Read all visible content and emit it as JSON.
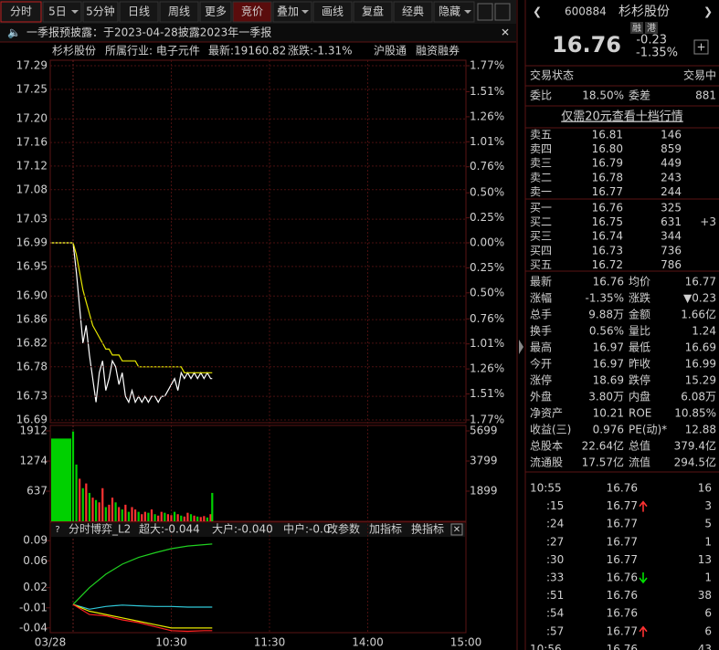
{
  "toolbar": {
    "tabs": [
      "分时",
      "5日",
      "5分钟",
      "日线",
      "周线",
      "更多",
      "竞价",
      "叠加",
      "画线",
      "复盘",
      "经典",
      "隐藏"
    ]
  },
  "notice": "一季报预披露：于2023-04-28披露2023年一季报",
  "info": {
    "name": "杉杉股份",
    "industry": "所属行业: 电子元件",
    "latest": "最新:19160.82",
    "change": "涨跌:-1.31%",
    "buttons": [
      "沪股通",
      "融资融券"
    ]
  },
  "chart_data": [
    {
      "type": "line",
      "x": [
        "09:15",
        "09:30",
        "09:32",
        "09:34",
        "09:36",
        "09:38",
        "09:40",
        "09:42",
        "09:44",
        "09:46",
        "09:48",
        "09:50",
        "09:52",
        "09:54",
        "09:56",
        "09:58",
        "10:00",
        "10:02",
        "10:04",
        "10:06",
        "10:08",
        "10:10",
        "10:12",
        "10:14",
        "10:16",
        "10:18",
        "10:20",
        "10:22",
        "10:24",
        "10:26",
        "10:28",
        "10:30",
        "10:32",
        "10:34",
        "10:36",
        "10:38",
        "10:40",
        "10:42",
        "10:44",
        "10:46",
        "10:48",
        "10:50",
        "10:52",
        "10:54",
        "10:55"
      ],
      "series": [
        {
          "color": "#ffffff",
          "values": [
            16.99,
            16.99,
            16.94,
            16.88,
            16.82,
            16.85,
            16.8,
            16.76,
            16.72,
            16.77,
            16.79,
            16.74,
            16.76,
            16.79,
            16.78,
            16.75,
            16.77,
            16.73,
            16.72,
            16.74,
            16.72,
            16.73,
            16.72,
            16.73,
            16.72,
            16.73,
            16.73,
            16.72,
            16.73,
            16.73,
            16.74,
            16.75,
            16.76,
            16.74,
            16.77,
            16.76,
            16.77,
            16.76,
            16.77,
            16.76,
            16.77,
            16.76,
            16.77,
            16.76,
            16.76
          ]
        },
        {
          "color": "#e8e800",
          "values": [
            16.99,
            16.99,
            16.97,
            16.94,
            16.91,
            16.89,
            16.87,
            16.85,
            16.84,
            16.83,
            16.82,
            16.81,
            16.81,
            16.8,
            16.8,
            16.8,
            16.79,
            16.79,
            16.79,
            16.79,
            16.79,
            16.78,
            16.78,
            16.78,
            16.78,
            16.78,
            16.78,
            16.78,
            16.78,
            16.78,
            16.78,
            16.78,
            16.78,
            16.78,
            16.78,
            16.77,
            16.77,
            16.77,
            16.77,
            16.77,
            16.77,
            16.77,
            16.77,
            16.77,
            16.77
          ]
        }
      ],
      "ylim": [
        16.69,
        17.29
      ],
      "yticks": [
        16.69,
        16.73,
        16.78,
        16.82,
        16.86,
        {
          "value": 16.9,
          "label": "16.90"
        },
        16.95,
        16.99,
        17.03,
        17.08,
        17.12,
        17.16,
        {
          "value": 17.2,
          "label": "17.20"
        },
        17.25,
        17.29
      ],
      "y2lim": [
        -1.77,
        1.77
      ],
      "y2ticks": [
        {
          "value": -1.77,
          "label": "1.77%"
        },
        {
          "value": -1.51,
          "label": "1.51%"
        },
        {
          "value": -1.26,
          "label": "1.26%"
        },
        {
          "value": -1.01,
          "label": "1.01%"
        },
        {
          "value": -0.76,
          "label": "0.76%"
        },
        {
          "value": -0.5,
          "label": "0.50%"
        },
        {
          "value": -0.25,
          "label": "0.25%"
        },
        {
          "value": 0,
          "label": "0.00%"
        },
        {
          "value": 0.25,
          "label": "0.25%"
        },
        {
          "value": 0.5,
          "label": "0.50%"
        },
        {
          "value": 0.76,
          "label": "0.76%"
        },
        {
          "value": 1.01,
          "label": "1.01%"
        },
        {
          "value": 1.26,
          "label": "1.26%"
        },
        {
          "value": 1.51,
          "label": "1.51%"
        },
        {
          "value": 1.77,
          "label": "1.77%"
        }
      ],
      "xticks": [
        {
          "value": "09:15",
          "label": "03/28"
        },
        "10:30",
        "11:30",
        "14:00",
        "15:00"
      ],
      "grid": true
    },
    {
      "type": "bar",
      "x": [
        "09:15",
        "09:30",
        "09:32",
        "09:34",
        "09:36",
        "09:38",
        "09:40",
        "09:42",
        "09:44",
        "09:46",
        "09:48",
        "09:50",
        "09:52",
        "09:54",
        "09:56",
        "09:58",
        "10:00",
        "10:02",
        "10:04",
        "10:06",
        "10:08",
        "10:10",
        "10:12",
        "10:14",
        "10:16",
        "10:18",
        "10:20",
        "10:22",
        "10:24",
        "10:26",
        "10:28",
        "10:30",
        "10:32",
        "10:34",
        "10:36",
        "10:38",
        "10:40",
        "10:42",
        "10:44",
        "10:46",
        "10:48",
        "10:50",
        "10:52",
        "10:54",
        "10:55"
      ],
      "values": [
        1750,
        1900,
        1200,
        900,
        700,
        800,
        600,
        500,
        450,
        400,
        700,
        300,
        350,
        500,
        400,
        300,
        250,
        350,
        200,
        300,
        250,
        200,
        150,
        200,
        180,
        250,
        150,
        120,
        200,
        180,
        150,
        130,
        200,
        150,
        120,
        100,
        180,
        150,
        120,
        100,
        90,
        110,
        80,
        150,
        600
      ],
      "colors": [
        "#00d000",
        "#00d000",
        "#00d000",
        "#ff3232",
        "#00d000",
        "#ff3232",
        "#00d000",
        "#ff3232",
        "#00d000",
        "#ff3232",
        "#ff3232",
        "#00d000",
        "#ff3232",
        "#ff3232",
        "#00d000",
        "#ff3232",
        "#00d000",
        "#ff3232",
        "#00d000",
        "#ff3232",
        "#ff3232",
        "#00d000",
        "#ff3232",
        "#ff3232",
        "#00d000",
        "#ff3232",
        "#00d000",
        "#ff3232",
        "#ff3232",
        "#00d000",
        "#ff3232",
        "#ff3232",
        "#00d000",
        "#ff3232",
        "#00d000",
        "#ff3232",
        "#ff3232",
        "#00d000",
        "#ff3232",
        "#00d000",
        "#ff3232",
        "#ff3232",
        "#00d000",
        "#ff3232",
        "#00d000"
      ],
      "ylim": [
        0,
        1912
      ],
      "yticks": [
        637,
        1274,
        1912
      ],
      "y2lim": [
        0,
        5699
      ],
      "y2ticks": [
        1899,
        3799,
        5699
      ]
    },
    {
      "type": "line",
      "title": "分时博弈_L2",
      "legend": [
        {
          "label": "超大:-0.044",
          "color": "#ff3030"
        },
        {
          "label": "大户:-0.040",
          "color": "#e8e800"
        },
        {
          "label": "中户:-0.0",
          "color": "#30d0ff"
        }
      ],
      "buttons": [
        "改参数",
        "加指标",
        "换指标"
      ],
      "x": [
        "09:30",
        "09:40",
        "09:50",
        "10:00",
        "10:10",
        "10:20",
        "10:30",
        "10:40",
        "10:50",
        "10:55"
      ],
      "series": [
        {
          "color": "#20d020",
          "values": [
            -0.005,
            0.02,
            0.04,
            0.055,
            0.065,
            0.072,
            0.078,
            0.082,
            0.084,
            0.085
          ]
        },
        {
          "color": "#30c8d8",
          "values": [
            -0.005,
            -0.012,
            -0.008,
            -0.006,
            -0.007,
            -0.008,
            -0.008,
            -0.009,
            -0.009,
            -0.009
          ]
        },
        {
          "color": "#e8e800",
          "values": [
            -0.005,
            -0.015,
            -0.02,
            -0.025,
            -0.03,
            -0.035,
            -0.04,
            -0.04,
            -0.04,
            -0.04
          ]
        },
        {
          "color": "#ff2020",
          "values": [
            -0.005,
            -0.02,
            -0.022,
            -0.028,
            -0.032,
            -0.038,
            -0.044,
            -0.045,
            -0.044,
            -0.044
          ]
        }
      ],
      "ylim": [
        -0.047,
        0.093
      ],
      "yticks": [
        0.09,
        0.06,
        0.02,
        -0.01,
        -0.04
      ]
    }
  ],
  "quote": {
    "code": "600884",
    "name": "杉杉股份",
    "badges": [
      "融",
      "港"
    ],
    "price": "16.76",
    "change": "-0.23",
    "pct": "-1.35%",
    "status_label": "交易状态",
    "status": "交易中",
    "wb_label": "委比",
    "wb": "18.50%",
    "wc_label": "委差",
    "wc": "881",
    "promo": "仅需20元查看十档行情",
    "asks": [
      {
        "label": "卖五",
        "price": "16.81",
        "vol": "146"
      },
      {
        "label": "卖四",
        "price": "16.80",
        "vol": "859"
      },
      {
        "label": "卖三",
        "price": "16.79",
        "vol": "449"
      },
      {
        "label": "卖二",
        "price": "16.78",
        "vol": "243"
      },
      {
        "label": "卖一",
        "price": "16.77",
        "vol": "244"
      }
    ],
    "bids": [
      {
        "label": "买一",
        "price": "16.76",
        "vol": "325"
      },
      {
        "label": "买二",
        "price": "16.75",
        "vol": "631",
        "chg": "+3"
      },
      {
        "label": "买三",
        "price": "16.74",
        "vol": "344"
      },
      {
        "label": "买四",
        "price": "16.73",
        "vol": "736"
      },
      {
        "label": "买五",
        "price": "16.72",
        "vol": "786"
      }
    ],
    "stats": [
      [
        "最新",
        "16.76",
        "均价",
        "16.77"
      ],
      [
        "涨幅",
        "-1.35%",
        "涨跌",
        "▼0.23"
      ],
      [
        "总手",
        "9.88万",
        "金额",
        "1.66亿"
      ],
      [
        "换手",
        "0.56%",
        "量比",
        "1.24"
      ],
      [
        "最高",
        "16.97",
        "最低",
        "16.69"
      ],
      [
        "今开",
        "16.97",
        "昨收",
        "16.99"
      ],
      [
        "涨停",
        "18.69",
        "跌停",
        "15.29"
      ],
      [
        "外盘",
        "3.80万",
        "内盘",
        "6.08万"
      ],
      [
        "净资产",
        "10.21",
        "ROE",
        "10.85%"
      ],
      [
        "收益(三)",
        "0.976",
        "PE(动)*",
        "12.88"
      ],
      [
        "总股本",
        "22.64亿",
        "总值",
        "379.4亿"
      ],
      [
        "流通股",
        "17.57亿",
        "流值",
        "294.5亿"
      ]
    ],
    "stats_colors": [
      [
        "#00e000",
        "#00e000"
      ],
      [
        "#00e000",
        "#00e000"
      ],
      [
        "#e6e6e6",
        "#00d8ff"
      ],
      [
        "#e6e6e6",
        "#ff3232"
      ],
      [
        "#00e000",
        "#00e000"
      ],
      [
        "#00e000",
        "#e6e6e6"
      ],
      [
        "#ff3232",
        "#00e000"
      ],
      [
        "#ff3232",
        "#00e000"
      ],
      [
        "#e6e6e6",
        "#e6e6e6"
      ],
      [
        "#e6e6e6",
        "#e6e6e6"
      ],
      [
        "#e6e6e6",
        "#e6e6e6"
      ],
      [
        "#e6e6e6",
        "#e6e6e6"
      ]
    ],
    "ticks": [
      {
        "time": "10:55",
        "price": "16.76",
        "vol": "16",
        "vol_color": "#ff3232"
      },
      {
        "time": ":15",
        "price": "16.77",
        "dir": "up",
        "vol": "3",
        "vol_color": "#ff3232"
      },
      {
        "time": ":24",
        "price": "16.77",
        "vol": "5",
        "vol_color": "#ff3232"
      },
      {
        "time": ":27",
        "price": "16.77",
        "vol": "1",
        "vol_color": "#ff3232"
      },
      {
        "time": ":30",
        "price": "16.77",
        "vol": "13",
        "vol_color": "#ff3232"
      },
      {
        "time": ":33",
        "price": "16.76",
        "dir": "down",
        "vol": "1",
        "vol_color": "#00e000"
      },
      {
        "time": ":51",
        "price": "16.76",
        "vol": "38",
        "vol_color": "#00e000"
      },
      {
        "time": ":54",
        "price": "16.76",
        "vol": "6",
        "vol_color": "#ff3232"
      },
      {
        "time": ":57",
        "price": "16.77",
        "dir": "up",
        "vol": "6",
        "vol_color": "#ff3232"
      },
      {
        "time": "10:56",
        "price": "16.76",
        "vol": "43",
        "vol_color": "#00e000"
      }
    ]
  }
}
